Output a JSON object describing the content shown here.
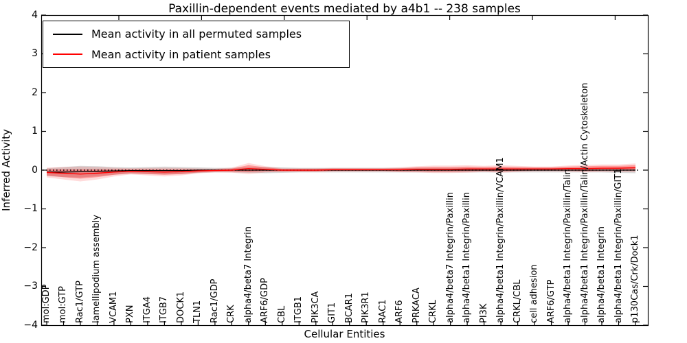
{
  "title": "Paxillin-dependent events mediated by a4b1 -- 238 samples",
  "axes": {
    "ylabel": "Inferred Activity",
    "xlabel": "Cellular Entities",
    "yticks": [
      "4",
      "3",
      "2",
      "1",
      "0",
      "−1",
      "−2",
      "−3",
      "−4"
    ]
  },
  "legend": {
    "entries": [
      {
        "label": "Mean activity in all permuted samples",
        "color": "#000000"
      },
      {
        "label": "Mean activity in patient samples",
        "color": "#ff0000"
      }
    ]
  },
  "colors": {
    "permuted_line": "#000000",
    "patient_line": "#ff0000",
    "permuted_band": "rgba(0,0,0,0.15)",
    "patient_band_outer": "rgba(255,0,0,0.14)",
    "patient_band_inner": "rgba(255,0,0,0.30)",
    "spine": "#000000"
  },
  "chart_data": {
    "type": "line",
    "title": "Paxillin-dependent events mediated by a4b1 -- 238 samples",
    "xlabel": "Cellular Entities",
    "ylabel": "Inferred Activity",
    "ylim": [
      -4,
      4
    ],
    "ytick_values": [
      4,
      3,
      2,
      1,
      0,
      -1,
      -2,
      -3,
      -4
    ],
    "grid": false,
    "legend_position": "upper left",
    "zero_reference_line": {
      "y": 0,
      "style": "dotted",
      "color": "#000000"
    },
    "categories": [
      "mol:GDP",
      "mol:GTP",
      "Rac1/GTP",
      "lamellipodium assembly",
      "VCAM1",
      "PXN",
      "ITGA4",
      "ITGB7",
      "DOCK1",
      "TLN1",
      "Rac1/GDP",
      "CRK",
      "alpha4/beta7 Integrin",
      "ARF6/GDP",
      "CBL",
      "ITGB1",
      "PIK3CA",
      "GIT1",
      "BCAR1",
      "PIK3R1",
      "RAC1",
      "ARF6",
      "PRKACA",
      "CRKL",
      "alpha4/beta7 Integrin/Paxillin",
      "alpha4/beta1 Integrin/Paxillin",
      "PI3K",
      "alpha4/beta1 Integrin/Paxillin/VCAM1",
      "CRKL/CBL",
      "cell adhesion",
      "ARF6/GTP",
      "alpha4/beta1 Integrin/Paxillin/Talin",
      "alpha4/beta1 Integrin/Paxillin/Talin/Actin Cytoskeleton",
      "alpha4/beta1 Integrin",
      "alpha4/beta1 Integrin/Paxillin/GIT1",
      "p130Cas/Crk/Dock1"
    ],
    "series": [
      {
        "name": "Mean activity in all permuted samples",
        "color": "#000000",
        "values": [
          -0.05,
          -0.05,
          -0.04,
          -0.03,
          -0.02,
          -0.01,
          -0.01,
          -0.01,
          -0.01,
          0,
          0,
          0,
          0,
          0,
          0,
          0,
          0,
          0,
          0,
          0,
          0,
          0,
          0,
          0,
          0,
          0,
          0,
          0,
          0,
          0,
          0,
          0,
          0,
          0,
          0,
          0
        ],
        "band_halfwidth": [
          0.1,
          0.13,
          0.15,
          0.13,
          0.1,
          0.08,
          0.09,
          0.1,
          0.09,
          0.07,
          0.06,
          0.06,
          0.07,
          0.08,
          0.07,
          0.06,
          0.06,
          0.06,
          0.06,
          0.06,
          0.06,
          0.06,
          0.06,
          0.06,
          0.06,
          0.06,
          0.06,
          0.06,
          0.06,
          0.06,
          0.06,
          0.06,
          0.06,
          0.06,
          0.07,
          0.08
        ]
      },
      {
        "name": "Mean activity in patient samples",
        "color": "#ff0000",
        "values": [
          -0.06,
          -0.08,
          -0.1,
          -0.08,
          -0.05,
          -0.03,
          -0.04,
          -0.05,
          -0.04,
          -0.02,
          -0.01,
          0.0,
          0.04,
          0.02,
          0.0,
          0.0,
          0.0,
          0.01,
          0.01,
          0.01,
          0.01,
          0.01,
          0.02,
          0.02,
          0.02,
          0.03,
          0.03,
          0.03,
          0.03,
          0.03,
          0.03,
          0.04,
          0.04,
          0.05,
          0.05,
          0.06
        ],
        "band_halfwidth": [
          0.08,
          0.1,
          0.12,
          0.1,
          0.07,
          0.05,
          0.06,
          0.07,
          0.06,
          0.04,
          0.03,
          0.04,
          0.09,
          0.05,
          0.03,
          0.03,
          0.03,
          0.03,
          0.03,
          0.03,
          0.03,
          0.04,
          0.05,
          0.06,
          0.06,
          0.06,
          0.05,
          0.06,
          0.05,
          0.04,
          0.04,
          0.05,
          0.06,
          0.06,
          0.06,
          0.07
        ]
      }
    ]
  }
}
